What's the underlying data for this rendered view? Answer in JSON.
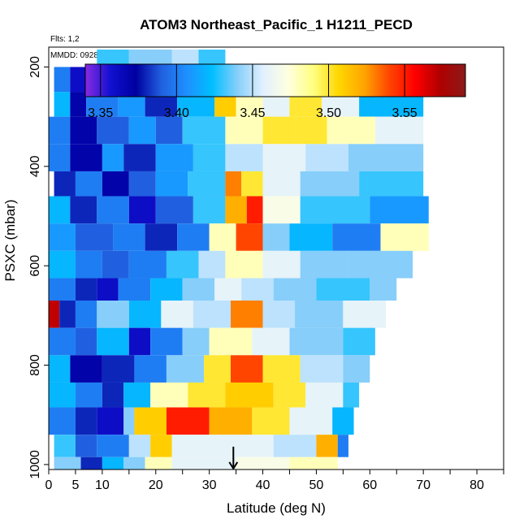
{
  "chart_data": {
    "type": "heatmap",
    "title": "ATOM3 Northeast_Pacific_1 H1211_PECD",
    "subtitle_flights": "Flts: 1,2",
    "subtitle_dates": "MMDD: 0928,1001",
    "xlabel": "Latitude (deg N)",
    "ylabel": "PSXC (mbar)",
    "xlim": [
      0,
      85
    ],
    "ylim": [
      1010,
      160
    ],
    "y_reversed": true,
    "x_tick_labels": [
      "0",
      "5",
      "10",
      "20",
      "30",
      "40",
      "50",
      "60",
      "70",
      "80"
    ],
    "x_tick_values": [
      0,
      5,
      10,
      20,
      30,
      40,
      50,
      60,
      70,
      80
    ],
    "y_tick_labels": [
      "200",
      "400",
      "600",
      "800",
      "1000"
    ],
    "y_tick_values": [
      200,
      400,
      600,
      800,
      1000
    ],
    "colorbar": {
      "range": [
        3.34,
        3.59
      ],
      "tick_labels": [
        "3.35",
        "3.40",
        "3.45",
        "3.50",
        "3.55"
      ],
      "tick_values": [
        3.35,
        3.4,
        3.45,
        3.5,
        3.55
      ],
      "colors": [
        "#8a2be2",
        "#1010d0",
        "#0000a0",
        "#2060e0",
        "#1e90ff",
        "#00bfff",
        "#87cefa",
        "#e0f0ff",
        "#ffffe0",
        "#ffff80",
        "#ffd700",
        "#ffa500",
        "#ff4500",
        "#ff0000",
        "#b00000",
        "#8b1a1a"
      ]
    },
    "arrow_marker": {
      "latitude": 34.5,
      "pressure": 1000
    },
    "bands": [
      {
        "p_top": 165,
        "p_bot": 200,
        "segments": [
          [
            9,
            15,
            3.43
          ],
          [
            15,
            23,
            3.44
          ],
          [
            23,
            28,
            3.45
          ],
          [
            28,
            33,
            3.43
          ]
        ]
      },
      {
        "p_top": 200,
        "p_bot": 250,
        "segments": [
          [
            1,
            4,
            3.4
          ],
          [
            4,
            7,
            3.36
          ],
          [
            7,
            9,
            3.4
          ],
          [
            9,
            13,
            3.42
          ],
          [
            13,
            16,
            3.44
          ],
          [
            16,
            20,
            3.38
          ],
          [
            20,
            24,
            3.42
          ],
          [
            24,
            28,
            3.49
          ],
          [
            28,
            33,
            3.44
          ],
          [
            33,
            43,
            3.46
          ],
          [
            43,
            52,
            3.45
          ],
          [
            52,
            57,
            3.49
          ],
          [
            57,
            65,
            3.44
          ],
          [
            65,
            70,
            3.42
          ]
        ]
      },
      {
        "p_top": 250,
        "p_bot": 300,
        "segments": [
          [
            1,
            4,
            3.42
          ],
          [
            4,
            7,
            3.37
          ],
          [
            7,
            13,
            3.4
          ],
          [
            13,
            18,
            3.41
          ],
          [
            18,
            24,
            3.38
          ],
          [
            24,
            31,
            3.42
          ],
          [
            31,
            35,
            3.51
          ],
          [
            35,
            40,
            3.48
          ],
          [
            40,
            45,
            3.46
          ],
          [
            45,
            51,
            3.5
          ],
          [
            51,
            58,
            3.46
          ],
          [
            58,
            70,
            3.42
          ]
        ]
      },
      {
        "p_top": 300,
        "p_bot": 355,
        "segments": [
          [
            0,
            4,
            3.4
          ],
          [
            4,
            9,
            3.37
          ],
          [
            9,
            15,
            3.39
          ],
          [
            15,
            20,
            3.41
          ],
          [
            20,
            25,
            3.39
          ],
          [
            25,
            33,
            3.43
          ],
          [
            33,
            40,
            3.48
          ],
          [
            40,
            46,
            3.5
          ],
          [
            46,
            52,
            3.5
          ],
          [
            52,
            61,
            3.48
          ],
          [
            61,
            70,
            3.46
          ]
        ]
      },
      {
        "p_top": 355,
        "p_bot": 410,
        "segments": [
          [
            0,
            4,
            3.4
          ],
          [
            4,
            10,
            3.37
          ],
          [
            10,
            14,
            3.41
          ],
          [
            14,
            20,
            3.38
          ],
          [
            20,
            27,
            3.41
          ],
          [
            27,
            33,
            3.43
          ],
          [
            33,
            40,
            3.45
          ],
          [
            40,
            48,
            3.46
          ],
          [
            48,
            56,
            3.45
          ],
          [
            56,
            70,
            3.44
          ]
        ]
      },
      {
        "p_top": 410,
        "p_bot": 460,
        "segments": [
          [
            1,
            5,
            3.38
          ],
          [
            5,
            10,
            3.4
          ],
          [
            10,
            15,
            3.37
          ],
          [
            15,
            20,
            3.39
          ],
          [
            20,
            26,
            3.41
          ],
          [
            26,
            33,
            3.43
          ],
          [
            33,
            36,
            3.53
          ],
          [
            36,
            40,
            3.5
          ],
          [
            40,
            47,
            3.46
          ],
          [
            47,
            58,
            3.44
          ],
          [
            58,
            70,
            3.43
          ]
        ]
      },
      {
        "p_top": 460,
        "p_bot": 515,
        "segments": [
          [
            0,
            4,
            3.42
          ],
          [
            4,
            9,
            3.38
          ],
          [
            9,
            15,
            3.4
          ],
          [
            15,
            20,
            3.36
          ],
          [
            20,
            27,
            3.39
          ],
          [
            27,
            33,
            3.43
          ],
          [
            33,
            37,
            3.52
          ],
          [
            37,
            40,
            3.55
          ],
          [
            40,
            47,
            3.47
          ],
          [
            47,
            60,
            3.43
          ],
          [
            60,
            71,
            3.41
          ]
        ]
      },
      {
        "p_top": 515,
        "p_bot": 570,
        "segments": [
          [
            0,
            5,
            3.41
          ],
          [
            5,
            12,
            3.39
          ],
          [
            12,
            18,
            3.4
          ],
          [
            18,
            24,
            3.38
          ],
          [
            24,
            30,
            3.4
          ],
          [
            30,
            35,
            3.48
          ],
          [
            35,
            40,
            3.54
          ],
          [
            40,
            45,
            3.44
          ],
          [
            45,
            53,
            3.42
          ],
          [
            53,
            62,
            3.4
          ],
          [
            62,
            71,
            3.48
          ]
        ]
      },
      {
        "p_top": 570,
        "p_bot": 625,
        "segments": [
          [
            0,
            5,
            3.42
          ],
          [
            5,
            10,
            3.4
          ],
          [
            10,
            15,
            3.39
          ],
          [
            15,
            22,
            3.4
          ],
          [
            22,
            28,
            3.43
          ],
          [
            28,
            33,
            3.45
          ],
          [
            33,
            40,
            3.48
          ],
          [
            40,
            47,
            3.46
          ],
          [
            47,
            56,
            3.44
          ],
          [
            56,
            68,
            3.44
          ]
        ]
      },
      {
        "p_top": 625,
        "p_bot": 670,
        "segments": [
          [
            0,
            5,
            3.4
          ],
          [
            5,
            9,
            3.38
          ],
          [
            9,
            13,
            3.36
          ],
          [
            13,
            19,
            3.4
          ],
          [
            19,
            25,
            3.42
          ],
          [
            25,
            31,
            3.44
          ],
          [
            31,
            36,
            3.46
          ],
          [
            36,
            42,
            3.45
          ],
          [
            42,
            50,
            3.44
          ],
          [
            50,
            60,
            3.43
          ],
          [
            60,
            65,
            3.44
          ]
        ]
      },
      {
        "p_top": 670,
        "p_bot": 725,
        "segments": [
          [
            0,
            2,
            3.57
          ],
          [
            2,
            5,
            3.38
          ],
          [
            5,
            9,
            3.4
          ],
          [
            9,
            15,
            3.44
          ],
          [
            15,
            21,
            3.42
          ],
          [
            21,
            27,
            3.46
          ],
          [
            27,
            34,
            3.45
          ],
          [
            34,
            40,
            3.53
          ],
          [
            40,
            46,
            3.45
          ],
          [
            46,
            55,
            3.44
          ],
          [
            55,
            63,
            3.46
          ]
        ]
      },
      {
        "p_top": 725,
        "p_bot": 780,
        "segments": [
          [
            0,
            5,
            3.4
          ],
          [
            5,
            9,
            3.39
          ],
          [
            9,
            15,
            3.42
          ],
          [
            15,
            19,
            3.36
          ],
          [
            19,
            25,
            3.4
          ],
          [
            25,
            30,
            3.44
          ],
          [
            30,
            38,
            3.48
          ],
          [
            38,
            45,
            3.46
          ],
          [
            45,
            55,
            3.44
          ],
          [
            55,
            61,
            3.43
          ]
        ]
      },
      {
        "p_top": 780,
        "p_bot": 835,
        "segments": [
          [
            0,
            4,
            3.42
          ],
          [
            4,
            10,
            3.37
          ],
          [
            10,
            16,
            3.38
          ],
          [
            16,
            22,
            3.4
          ],
          [
            22,
            29,
            3.44
          ],
          [
            29,
            34,
            3.5
          ],
          [
            34,
            40,
            3.54
          ],
          [
            40,
            47,
            3.5
          ],
          [
            47,
            55,
            3.45
          ],
          [
            55,
            60,
            3.44
          ]
        ]
      },
      {
        "p_top": 835,
        "p_bot": 885,
        "segments": [
          [
            0,
            5,
            3.42
          ],
          [
            5,
            10,
            3.4
          ],
          [
            10,
            14,
            3.38
          ],
          [
            14,
            19,
            3.42
          ],
          [
            19,
            26,
            3.48
          ],
          [
            26,
            33,
            3.5
          ],
          [
            33,
            42,
            3.51
          ],
          [
            42,
            48,
            3.5
          ],
          [
            48,
            55,
            3.46
          ],
          [
            55,
            58,
            3.43
          ]
        ]
      },
      {
        "p_top": 885,
        "p_bot": 940,
        "segments": [
          [
            0,
            5,
            3.4
          ],
          [
            5,
            9,
            3.38
          ],
          [
            9,
            14,
            3.36
          ],
          [
            14,
            16,
            3.44
          ],
          [
            16,
            22,
            3.51
          ],
          [
            22,
            30,
            3.55
          ],
          [
            30,
            38,
            3.52
          ],
          [
            38,
            45,
            3.5
          ],
          [
            45,
            53,
            3.46
          ],
          [
            53,
            57,
            3.42
          ]
        ]
      },
      {
        "p_top": 940,
        "p_bot": 985,
        "segments": [
          [
            1,
            5,
            3.43
          ],
          [
            5,
            9,
            3.39
          ],
          [
            9,
            15,
            3.4
          ],
          [
            15,
            19,
            3.45
          ],
          [
            19,
            23,
            3.51
          ],
          [
            23,
            32,
            3.46
          ],
          [
            32,
            42,
            3.46
          ],
          [
            42,
            50,
            3.45
          ],
          [
            50,
            54,
            3.52
          ],
          [
            54,
            56,
            3.4
          ]
        ]
      },
      {
        "p_top": 985,
        "p_bot": 1010,
        "segments": [
          [
            1,
            6,
            3.44
          ],
          [
            6,
            10,
            3.38
          ],
          [
            10,
            14,
            3.42
          ],
          [
            14,
            18,
            3.44
          ],
          [
            18,
            23,
            3.48
          ],
          [
            23,
            35,
            3.46
          ],
          [
            35,
            45,
            3.47
          ],
          [
            45,
            54,
            3.48
          ]
        ]
      }
    ]
  }
}
